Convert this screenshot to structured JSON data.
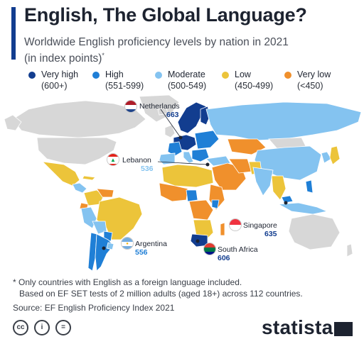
{
  "title": "English, The Global Language?",
  "subtitle": "Worldwide English proficiency levels by nation in 2021 (in index points)",
  "subtitle_marker": "*",
  "legend": [
    {
      "label": "Very high",
      "range": "(600+)",
      "color": "#123d8f"
    },
    {
      "label": "High",
      "range": "(551-599)",
      "color": "#1f7fd6"
    },
    {
      "label": "Moderate",
      "range": "(500-549)",
      "color": "#84c3f0"
    },
    {
      "label": "Low",
      "range": "(450-499)",
      "color": "#ecc43a"
    },
    {
      "label": "Very low",
      "range": "(<450)",
      "color": "#f0902c"
    }
  ],
  "no_data_color": "#d7d7d7",
  "callouts": [
    {
      "country": "Netherlands",
      "score": "663",
      "level": "Very high"
    },
    {
      "country": "Lebanon",
      "score": "536",
      "level": "Moderate"
    },
    {
      "country": "Argentina",
      "score": "556",
      "level": "High"
    },
    {
      "country": "Singapore",
      "score": "635",
      "level": "Very high"
    },
    {
      "country": "South Africa",
      "score": "606",
      "level": "Very high"
    }
  ],
  "notes": {
    "line1": "* Only countries with English as a foreign language included.",
    "line2": "Based on EF SET tests of 2 million adults (aged 18+) across 112 countries.",
    "source": "Source: EF English Proficiency Index 2021"
  },
  "footer": {
    "license_icons": [
      "cc-icon",
      "attribution-icon",
      "no-derivatives-icon"
    ],
    "brand": "statista"
  }
}
